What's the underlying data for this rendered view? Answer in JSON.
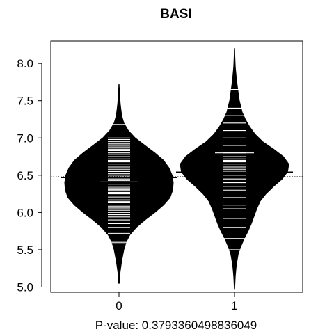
{
  "chart_data": {
    "type": "beanplot",
    "title": "BASI",
    "xlabel": "P-value: 0.3793360498836049",
    "ylabel": "",
    "categories": [
      "0",
      "1"
    ],
    "y_ticks": [
      "5.0",
      "5.5",
      "6.0",
      "6.5",
      "7.0",
      "7.5",
      "8.0"
    ],
    "ylim": [
      4.93,
      8.3
    ],
    "overall_mean": 6.48,
    "grid": false,
    "legend": "none",
    "series": [
      {
        "category": "0",
        "mean": 6.47,
        "median": 6.41,
        "quartiles": [
          5.58,
          7.18
        ],
        "density": [
          [
            5.05,
            0.005
          ],
          [
            5.2,
            0.02
          ],
          [
            5.35,
            0.05
          ],
          [
            5.5,
            0.09
          ],
          [
            5.6,
            0.13
          ],
          [
            5.7,
            0.2
          ],
          [
            5.8,
            0.32
          ],
          [
            5.9,
            0.48
          ],
          [
            6.0,
            0.66
          ],
          [
            6.1,
            0.82
          ],
          [
            6.2,
            0.94
          ],
          [
            6.3,
            0.99
          ],
          [
            6.4,
            1.0
          ],
          [
            6.5,
            0.98
          ],
          [
            6.6,
            0.92
          ],
          [
            6.7,
            0.82
          ],
          [
            6.8,
            0.66
          ],
          [
            6.9,
            0.48
          ],
          [
            7.0,
            0.3
          ],
          [
            7.1,
            0.17
          ],
          [
            7.2,
            0.09
          ],
          [
            7.3,
            0.05
          ],
          [
            7.45,
            0.025
          ],
          [
            7.6,
            0.01
          ],
          [
            7.72,
            0.003
          ]
        ],
        "observations": [
          5.6,
          5.72,
          5.8,
          5.85,
          5.9,
          5.94,
          5.97,
          6.0,
          6.03,
          6.06,
          6.08,
          6.1,
          6.13,
          6.15,
          6.17,
          6.2,
          6.22,
          6.25,
          6.27,
          6.3,
          6.31,
          6.33,
          6.35,
          6.38,
          6.43,
          6.45,
          6.48,
          6.5,
          6.52,
          6.55,
          6.58,
          6.6,
          6.62,
          6.65,
          6.68,
          6.7,
          6.72,
          6.75,
          6.78,
          6.8,
          6.83,
          6.85,
          6.88,
          6.9,
          6.92,
          6.95,
          6.98,
          7.0,
          7.18
        ]
      },
      {
        "category": "1",
        "mean": 6.54,
        "median": 6.8,
        "quartiles": [
          5.65,
          7.65
        ],
        "density": [
          [
            4.97,
            0.003
          ],
          [
            5.15,
            0.015
          ],
          [
            5.3,
            0.035
          ],
          [
            5.45,
            0.07
          ],
          [
            5.55,
            0.12
          ],
          [
            5.65,
            0.18
          ],
          [
            5.75,
            0.25
          ],
          [
            5.85,
            0.31
          ],
          [
            5.95,
            0.36
          ],
          [
            6.05,
            0.41
          ],
          [
            6.15,
            0.47
          ],
          [
            6.25,
            0.58
          ],
          [
            6.35,
            0.72
          ],
          [
            6.45,
            0.88
          ],
          [
            6.55,
            0.98
          ],
          [
            6.65,
            1.0
          ],
          [
            6.75,
            0.9
          ],
          [
            6.85,
            0.72
          ],
          [
            6.95,
            0.52
          ],
          [
            7.05,
            0.38
          ],
          [
            7.15,
            0.28
          ],
          [
            7.25,
            0.2
          ],
          [
            7.35,
            0.14
          ],
          [
            7.5,
            0.09
          ],
          [
            7.65,
            0.06
          ],
          [
            7.8,
            0.035
          ],
          [
            7.95,
            0.015
          ],
          [
            8.1,
            0.006
          ],
          [
            8.2,
            0.002
          ]
        ],
        "observations": [
          5.5,
          5.65,
          5.8,
          5.92,
          6.05,
          6.1,
          6.2,
          6.3,
          6.35,
          6.4,
          6.45,
          6.5,
          6.55,
          6.58,
          6.6,
          6.62,
          6.65,
          6.68,
          6.7,
          6.72,
          6.75,
          6.8,
          6.9,
          7.0,
          7.1,
          7.2,
          7.3,
          7.4,
          7.65
        ]
      }
    ]
  }
}
